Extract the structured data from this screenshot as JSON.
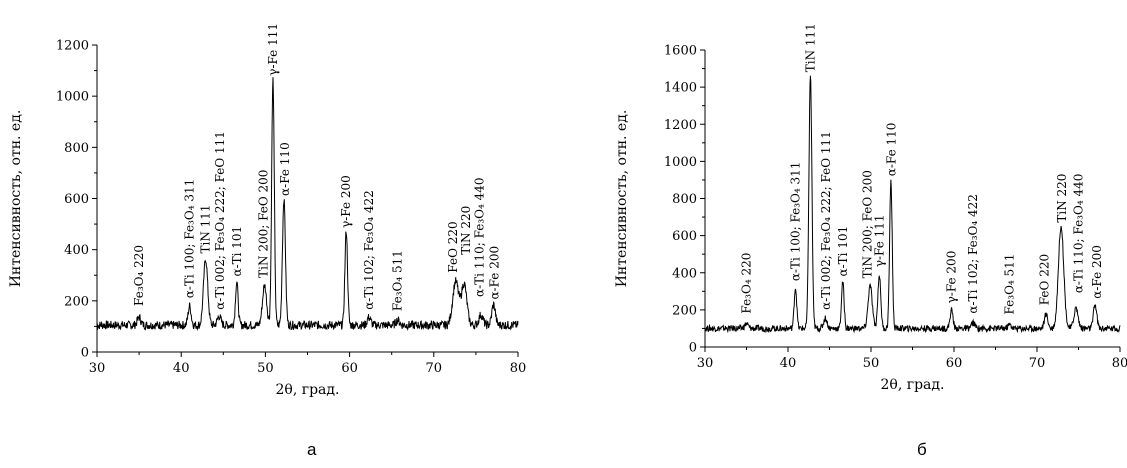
{
  "chart_data": [
    {
      "type": "line",
      "panel_label": "а",
      "xlabel": "2θ, град.",
      "ylabel": "Интенсивность, отн. ед.",
      "xlim": [
        30,
        80
      ],
      "ylim": [
        0,
        1200
      ],
      "xticks": [
        30,
        40,
        50,
        60,
        70,
        80
      ],
      "yticks": [
        0,
        200,
        400,
        600,
        800,
        1000,
        1200
      ],
      "grid": false,
      "baseline": 105,
      "peaks": [
        {
          "x": 35.0,
          "y": 30,
          "w": 0.3
        },
        {
          "x": 41.0,
          "y": 75,
          "w": 0.25
        },
        {
          "x": 42.9,
          "y": 260,
          "w": 0.35
        },
        {
          "x": 44.5,
          "y": 35,
          "w": 0.3
        },
        {
          "x": 46.6,
          "y": 170,
          "w": 0.22
        },
        {
          "x": 49.9,
          "y": 155,
          "w": 0.35
        },
        {
          "x": 50.9,
          "y": 960,
          "w": 0.22
        },
        {
          "x": 52.2,
          "y": 495,
          "w": 0.25
        },
        {
          "x": 59.6,
          "y": 370,
          "w": 0.22
        },
        {
          "x": 62.3,
          "y": 30,
          "w": 0.3
        },
        {
          "x": 65.7,
          "y": 20,
          "w": 0.3
        },
        {
          "x": 72.6,
          "y": 170,
          "w": 0.5
        },
        {
          "x": 73.6,
          "y": 160,
          "w": 0.45
        },
        {
          "x": 75.6,
          "y": 40,
          "w": 0.35
        },
        {
          "x": 77.1,
          "y": 80,
          "w": 0.3
        }
      ],
      "annotations": [
        {
          "x": 35.0,
          "y": 180,
          "text": "Fe₃O₄ 220"
        },
        {
          "x": 41.0,
          "y": 210,
          "text": "α-Ti 100; Fe₃O₄ 311"
        },
        {
          "x": 42.9,
          "y": 385,
          "text": "TiN 111"
        },
        {
          "x": 44.6,
          "y": 165,
          "text": "α-Ti 002; Fe₃O₄ 222; FeO 111"
        },
        {
          "x": 46.6,
          "y": 295,
          "text": "α-Ti 101"
        },
        {
          "x": 49.8,
          "y": 290,
          "text": "TiN 200; FeO 200"
        },
        {
          "x": 50.9,
          "y": 1080,
          "text": "γ-Fe 111"
        },
        {
          "x": 52.3,
          "y": 610,
          "text": "α-Fe 110"
        },
        {
          "x": 59.6,
          "y": 485,
          "text": "γ-Fe 200"
        },
        {
          "x": 62.3,
          "y": 165,
          "text": "α-Ti 102; Fe₃O₄ 422"
        },
        {
          "x": 65.7,
          "y": 160,
          "text": "Fe₃O₄ 511"
        },
        {
          "x": 72.3,
          "y": 310,
          "text": "FeO 220"
        },
        {
          "x": 73.8,
          "y": 380,
          "text": "TiN 220"
        },
        {
          "x": 75.4,
          "y": 215,
          "text": "α-Ti 110; Fe₃O₄ 440"
        },
        {
          "x": 77.2,
          "y": 205,
          "text": "α-Fe 200"
        }
      ]
    },
    {
      "type": "line",
      "panel_label": "б",
      "xlabel": "2θ, град.",
      "ylabel": "Интенсивность, отн. ед.",
      "xlim": [
        30,
        80
      ],
      "ylim": [
        0,
        1600
      ],
      "xticks": [
        30,
        40,
        50,
        60,
        70,
        80
      ],
      "yticks": [
        0,
        200,
        400,
        600,
        800,
        1000,
        1200,
        1400,
        1600
      ],
      "grid": false,
      "baseline": 100,
      "peaks": [
        {
          "x": 35.0,
          "y": 25,
          "w": 0.3
        },
        {
          "x": 40.9,
          "y": 220,
          "w": 0.22
        },
        {
          "x": 42.7,
          "y": 1370,
          "w": 0.25
        },
        {
          "x": 44.5,
          "y": 55,
          "w": 0.3
        },
        {
          "x": 46.6,
          "y": 250,
          "w": 0.22
        },
        {
          "x": 49.9,
          "y": 230,
          "w": 0.35
        },
        {
          "x": 51.0,
          "y": 290,
          "w": 0.25
        },
        {
          "x": 52.4,
          "y": 800,
          "w": 0.22
        },
        {
          "x": 59.7,
          "y": 100,
          "w": 0.25
        },
        {
          "x": 62.3,
          "y": 30,
          "w": 0.3
        },
        {
          "x": 66.7,
          "y": 20,
          "w": 0.3
        },
        {
          "x": 71.1,
          "y": 75,
          "w": 0.3
        },
        {
          "x": 72.9,
          "y": 555,
          "w": 0.45
        },
        {
          "x": 74.7,
          "y": 110,
          "w": 0.35
        },
        {
          "x": 77.0,
          "y": 130,
          "w": 0.28
        }
      ],
      "annotations": [
        {
          "x": 35.0,
          "y": 180,
          "text": "Fe₃O₄ 220"
        },
        {
          "x": 40.9,
          "y": 355,
          "text": "α-Ti 100; Fe₃O₄ 311"
        },
        {
          "x": 42.7,
          "y": 1480,
          "text": "TiN 111"
        },
        {
          "x": 44.6,
          "y": 200,
          "text": "α-Ti 002; Fe₃O₄ 222; FeO 111"
        },
        {
          "x": 46.6,
          "y": 380,
          "text": "α-Ti 101"
        },
        {
          "x": 49.6,
          "y": 370,
          "text": "TiN 200; FeO 200"
        },
        {
          "x": 51.0,
          "y": 430,
          "text": "γ-Fe 111"
        },
        {
          "x": 52.5,
          "y": 920,
          "text": "α-Fe 110"
        },
        {
          "x": 59.7,
          "y": 235,
          "text": "γ-Fe 200"
        },
        {
          "x": 62.3,
          "y": 180,
          "text": "α-Ti 102; Fe₃O₄ 422"
        },
        {
          "x": 66.7,
          "y": 175,
          "text": "Fe₃O₄ 511"
        },
        {
          "x": 70.9,
          "y": 225,
          "text": "FeO 220"
        },
        {
          "x": 73.0,
          "y": 670,
          "text": "TiN 220"
        },
        {
          "x": 75.0,
          "y": 290,
          "text": "α-Ti 110; Fe₃O₄ 440"
        },
        {
          "x": 77.2,
          "y": 260,
          "text": "α-Fe 200"
        }
      ]
    }
  ]
}
